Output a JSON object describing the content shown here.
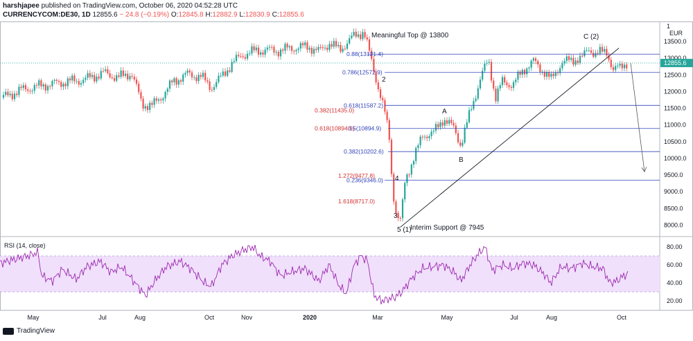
{
  "header": {
    "author": "harshjapee",
    "published_text": "published on TradingView.com, October 06, 2020 04:52:28 UTC",
    "symbol": "CURRENCYCOM:DE30, 1D",
    "last": "12855.6",
    "change": "− 24.8 (−0.19%)",
    "o_label": "O:",
    "o": "12845.8",
    "h_label": "H:",
    "h": "12882.9",
    "l_label": "L:",
    "l": "12830.9",
    "c_label": "C:",
    "c": "12855.6"
  },
  "footer": {
    "logo_text": "TradingView"
  },
  "colors": {
    "up": "#26a69a",
    "down": "#ef5350",
    "fib_line": "#3344bb",
    "rsi_line": "#9c27b0",
    "rsi_band": "#f0e0fb",
    "price_badge": "#26a69a"
  },
  "chart_data": [
    {
      "type": "candlestick",
      "price_axis": {
        "ticks": [
          "1",
          "13500.0",
          "13000.0",
          "12500.0",
          "12000.0",
          "11500.0",
          "11000.0",
          "10500.0",
          "10000.0",
          "9500.0",
          "9000.0",
          "8500.0",
          "8000.0"
        ],
        "currency": "EUR",
        "ylim": [
          7700,
          14100
        ],
        "current_price": "12855.6"
      },
      "time_axis": {
        "labels": [
          "May",
          "Jul",
          "Aug",
          "Oct",
          "Nov",
          "2020",
          "Mar",
          "May",
          "Jul",
          "Aug",
          "Oct"
        ]
      },
      "x_range": [
        0,
        1000
      ],
      "series_close": [
        [
          0,
          11780
        ],
        [
          30,
          12050
        ],
        [
          60,
          12180
        ],
        [
          90,
          12280
        ],
        [
          120,
          12350
        ],
        [
          150,
          12560
        ],
        [
          170,
          12420
        ],
        [
          190,
          12550
        ],
        [
          205,
          11620
        ],
        [
          220,
          11580
        ],
        [
          235,
          11900
        ],
        [
          250,
          12300
        ],
        [
          270,
          12520
        ],
        [
          290,
          12450
        ],
        [
          305,
          12120
        ],
        [
          320,
          12450
        ],
        [
          335,
          12850
        ],
        [
          350,
          13100
        ],
        [
          365,
          13200
        ],
        [
          385,
          13250
        ],
        [
          400,
          13220
        ],
        [
          420,
          13300
        ],
        [
          445,
          13350
        ],
        [
          460,
          13200
        ],
        [
          475,
          13450
        ],
        [
          490,
          13250
        ],
        [
          510,
          13650
        ],
        [
          525,
          13800
        ],
        [
          535,
          13000
        ],
        [
          545,
          12200
        ],
        [
          555,
          11400
        ],
        [
          562,
          10600
        ],
        [
          566,
          9200
        ],
        [
          572,
          8300
        ],
        [
          578,
          8100
        ],
        [
          585,
          9400
        ],
        [
          595,
          9900
        ],
        [
          610,
          10700
        ],
        [
          625,
          10750
        ],
        [
          640,
          11200
        ],
        [
          655,
          10900
        ],
        [
          665,
          10400
        ],
        [
          680,
          11500
        ],
        [
          695,
          12500
        ],
        [
          705,
          12950
        ],
        [
          715,
          11800
        ],
        [
          725,
          12300
        ],
        [
          740,
          12200
        ],
        [
          755,
          12650
        ],
        [
          770,
          12900
        ],
        [
          785,
          12600
        ],
        [
          795,
          12350
        ],
        [
          810,
          12850
        ],
        [
          825,
          12950
        ],
        [
          840,
          13000
        ],
        [
          850,
          13300
        ],
        [
          860,
          13100
        ],
        [
          875,
          13250
        ],
        [
          885,
          12600
        ],
        [
          900,
          12850
        ],
        [
          907,
          12855
        ]
      ],
      "fibonacci_levels": [
        {
          "label": "0.88(13121.4)",
          "value": 13121.4,
          "color": "blue"
        },
        {
          "label": "0.786(12572.9)",
          "value": 12572.9,
          "color": "blue"
        },
        {
          "label": "0.618(11587.2)",
          "value": 11587.2,
          "color": "blue"
        },
        {
          "label": "0.382(11435.0)",
          "value": 11435.0,
          "color": "red"
        },
        {
          "label": "0.618(10894.9)",
          "value": 10894.9,
          "color": "red"
        },
        {
          "label": "0.5(10894.9)",
          "value": 10894.9,
          "color": "blue"
        },
        {
          "label": "0.382(10202.6)",
          "value": 10202.6,
          "color": "blue"
        },
        {
          "label": "1.272(9477.8)",
          "value": 9477.8,
          "color": "red"
        },
        {
          "label": "0.236(9346.0)",
          "value": 9346.0,
          "color": "blue"
        },
        {
          "label": "1.618(8717.0)",
          "value": 8717.0,
          "color": "red"
        }
      ],
      "annotations": [
        "Meaningful Top @ 13800",
        "2",
        "A",
        "B",
        "4",
        "3",
        "5 (1)",
        "Interim Support @ 7945",
        "C (2)"
      ],
      "trendline": {
        "from": [
          578,
          7945
        ],
        "to": [
          893,
          13300
        ]
      },
      "projection_arrow": {
        "from": [
          910,
          12850
        ],
        "to": [
          930,
          9600
        ]
      }
    },
    {
      "type": "line",
      "title": "RSI (14, close)",
      "ylim": [
        10,
        90
      ],
      "y_ticks": [
        "80.00",
        "60.00",
        "40.00",
        "20.00"
      ],
      "bands": [
        30,
        70
      ],
      "values": [
        [
          0,
          62
        ],
        [
          20,
          66
        ],
        [
          40,
          70
        ],
        [
          55,
          74
        ],
        [
          60,
          48
        ],
        [
          75,
          42
        ],
        [
          90,
          55
        ],
        [
          110,
          44
        ],
        [
          125,
          58
        ],
        [
          145,
          64
        ],
        [
          160,
          52
        ],
        [
          175,
          58
        ],
        [
          195,
          40
        ],
        [
          210,
          26
        ],
        [
          225,
          44
        ],
        [
          240,
          58
        ],
        [
          260,
          64
        ],
        [
          275,
          56
        ],
        [
          295,
          40
        ],
        [
          305,
          36
        ],
        [
          320,
          60
        ],
        [
          335,
          70
        ],
        [
          350,
          76
        ],
        [
          365,
          80
        ],
        [
          375,
          70
        ],
        [
          390,
          64
        ],
        [
          405,
          48
        ],
        [
          420,
          52
        ],
        [
          440,
          56
        ],
        [
          460,
          42
        ],
        [
          475,
          60
        ],
        [
          490,
          36
        ],
        [
          500,
          28
        ],
        [
          510,
          58
        ],
        [
          520,
          70
        ],
        [
          530,
          65
        ],
        [
          540,
          26
        ],
        [
          550,
          20
        ],
        [
          560,
          22
        ],
        [
          570,
          24
        ],
        [
          580,
          30
        ],
        [
          595,
          46
        ],
        [
          610,
          56
        ],
        [
          625,
          58
        ],
        [
          640,
          60
        ],
        [
          655,
          52
        ],
        [
          665,
          42
        ],
        [
          680,
          62
        ],
        [
          690,
          72
        ],
        [
          700,
          80
        ],
        [
          710,
          54
        ],
        [
          725,
          60
        ],
        [
          740,
          56
        ],
        [
          755,
          62
        ],
        [
          770,
          60
        ],
        [
          785,
          50
        ],
        [
          795,
          40
        ],
        [
          810,
          58
        ],
        [
          825,
          56
        ],
        [
          840,
          62
        ],
        [
          855,
          58
        ],
        [
          870,
          56
        ],
        [
          880,
          40
        ],
        [
          890,
          42
        ],
        [
          900,
          48
        ],
        [
          907,
          50
        ]
      ]
    }
  ]
}
